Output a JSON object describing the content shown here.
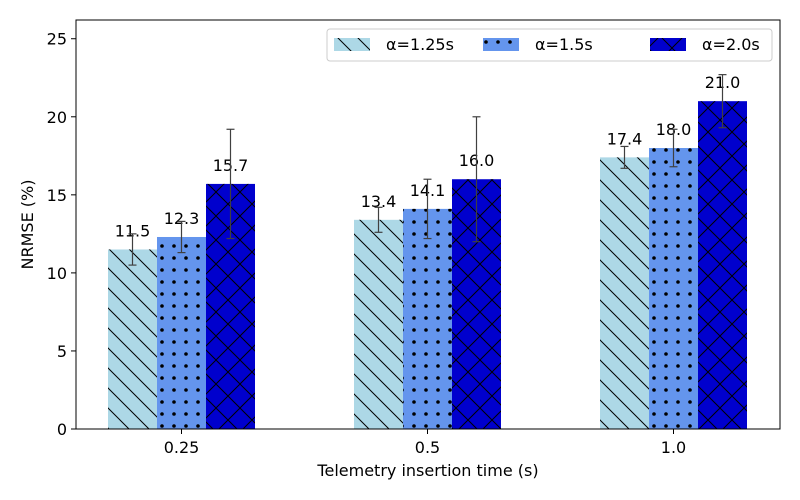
{
  "chart_data": {
    "type": "bar",
    "title": "",
    "xlabel": "Telemetry insertion time (s)",
    "ylabel": "NRMSE  (%)",
    "categories": [
      "0.25",
      "0.5",
      "1.0"
    ],
    "ylim": [
      0,
      26.2
    ],
    "yticks": [
      0,
      5,
      10,
      15,
      20,
      25
    ],
    "grid": false,
    "legend_position": "top-right",
    "series": [
      {
        "name": "α=1.25s",
        "values": [
          11.5,
          13.4,
          17.4
        ],
        "labels": [
          "11.5",
          "13.4",
          "17.4"
        ],
        "errors": [
          1.0,
          0.8,
          0.7
        ],
        "color": "#add8e6",
        "hatch": "backslash"
      },
      {
        "name": "α=1.5s",
        "values": [
          12.3,
          14.1,
          18.0
        ],
        "labels": [
          "12.3",
          "14.1",
          "18.0"
        ],
        "errors": [
          1.0,
          1.9,
          1.2
        ],
        "color": "#6495ed",
        "hatch": "dots"
      },
      {
        "name": "α=2.0s",
        "values": [
          15.7,
          16.0,
          21.0
        ],
        "labels": [
          "15.7",
          "16.0",
          "21.0"
        ],
        "errors": [
          3.5,
          4.0,
          1.7
        ],
        "color": "#0000cd",
        "hatch": "cross"
      }
    ]
  }
}
